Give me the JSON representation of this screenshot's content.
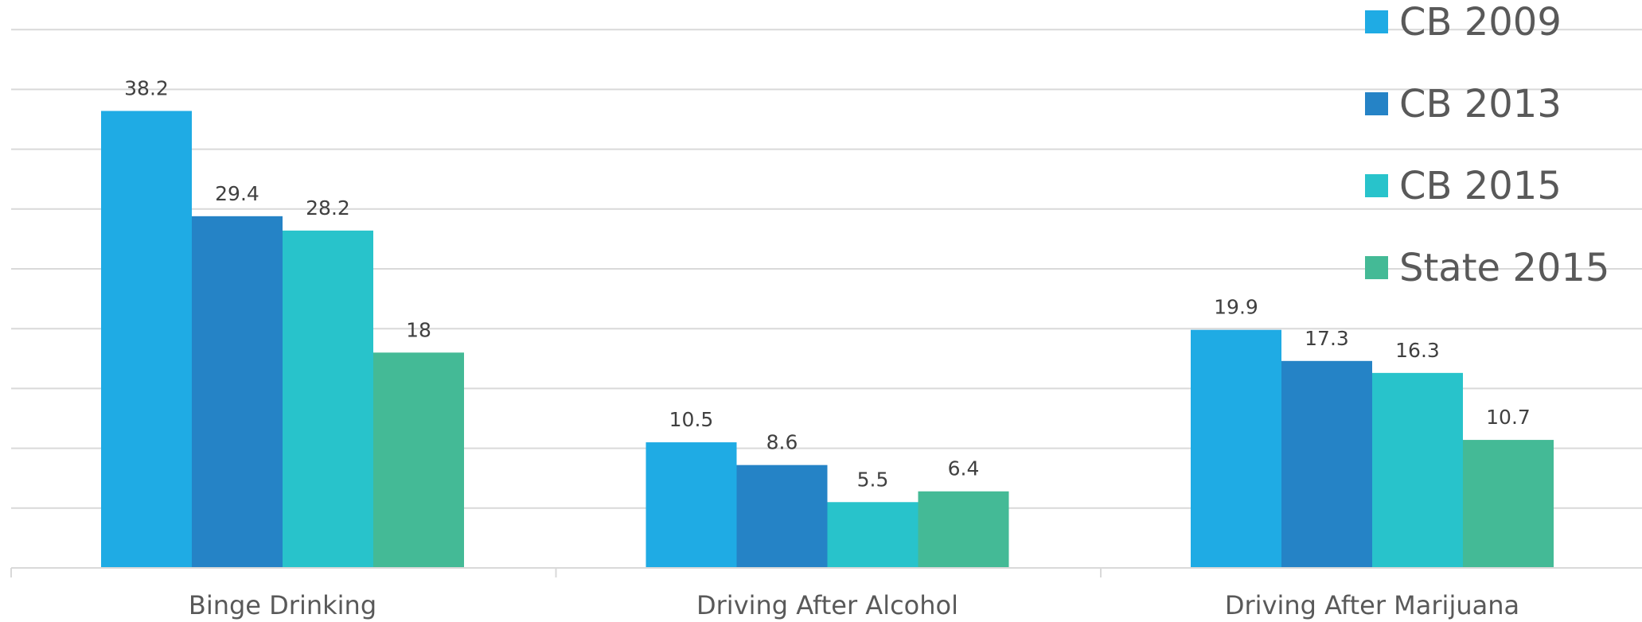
{
  "chart_data": {
    "type": "bar",
    "categories": [
      "Binge Drinking",
      "Driving After Alcohol",
      "Driving After Marijuana"
    ],
    "series": [
      {
        "name": "CB 2009",
        "color": "#1fabe4",
        "values": [
          38.2,
          10.5,
          19.9
        ]
      },
      {
        "name": "CB 2013",
        "color": "#2583c6",
        "values": [
          29.4,
          8.6,
          17.3
        ]
      },
      {
        "name": "CB 2015",
        "color": "#28c3cb",
        "values": [
          28.2,
          5.5,
          16.3
        ]
      },
      {
        "name": "State 2015",
        "color": "#44ba96",
        "values": [
          18,
          6.4,
          10.7
        ]
      }
    ],
    "ylim": [
      0,
      45
    ],
    "grid": true,
    "legend_position": "top-right"
  }
}
